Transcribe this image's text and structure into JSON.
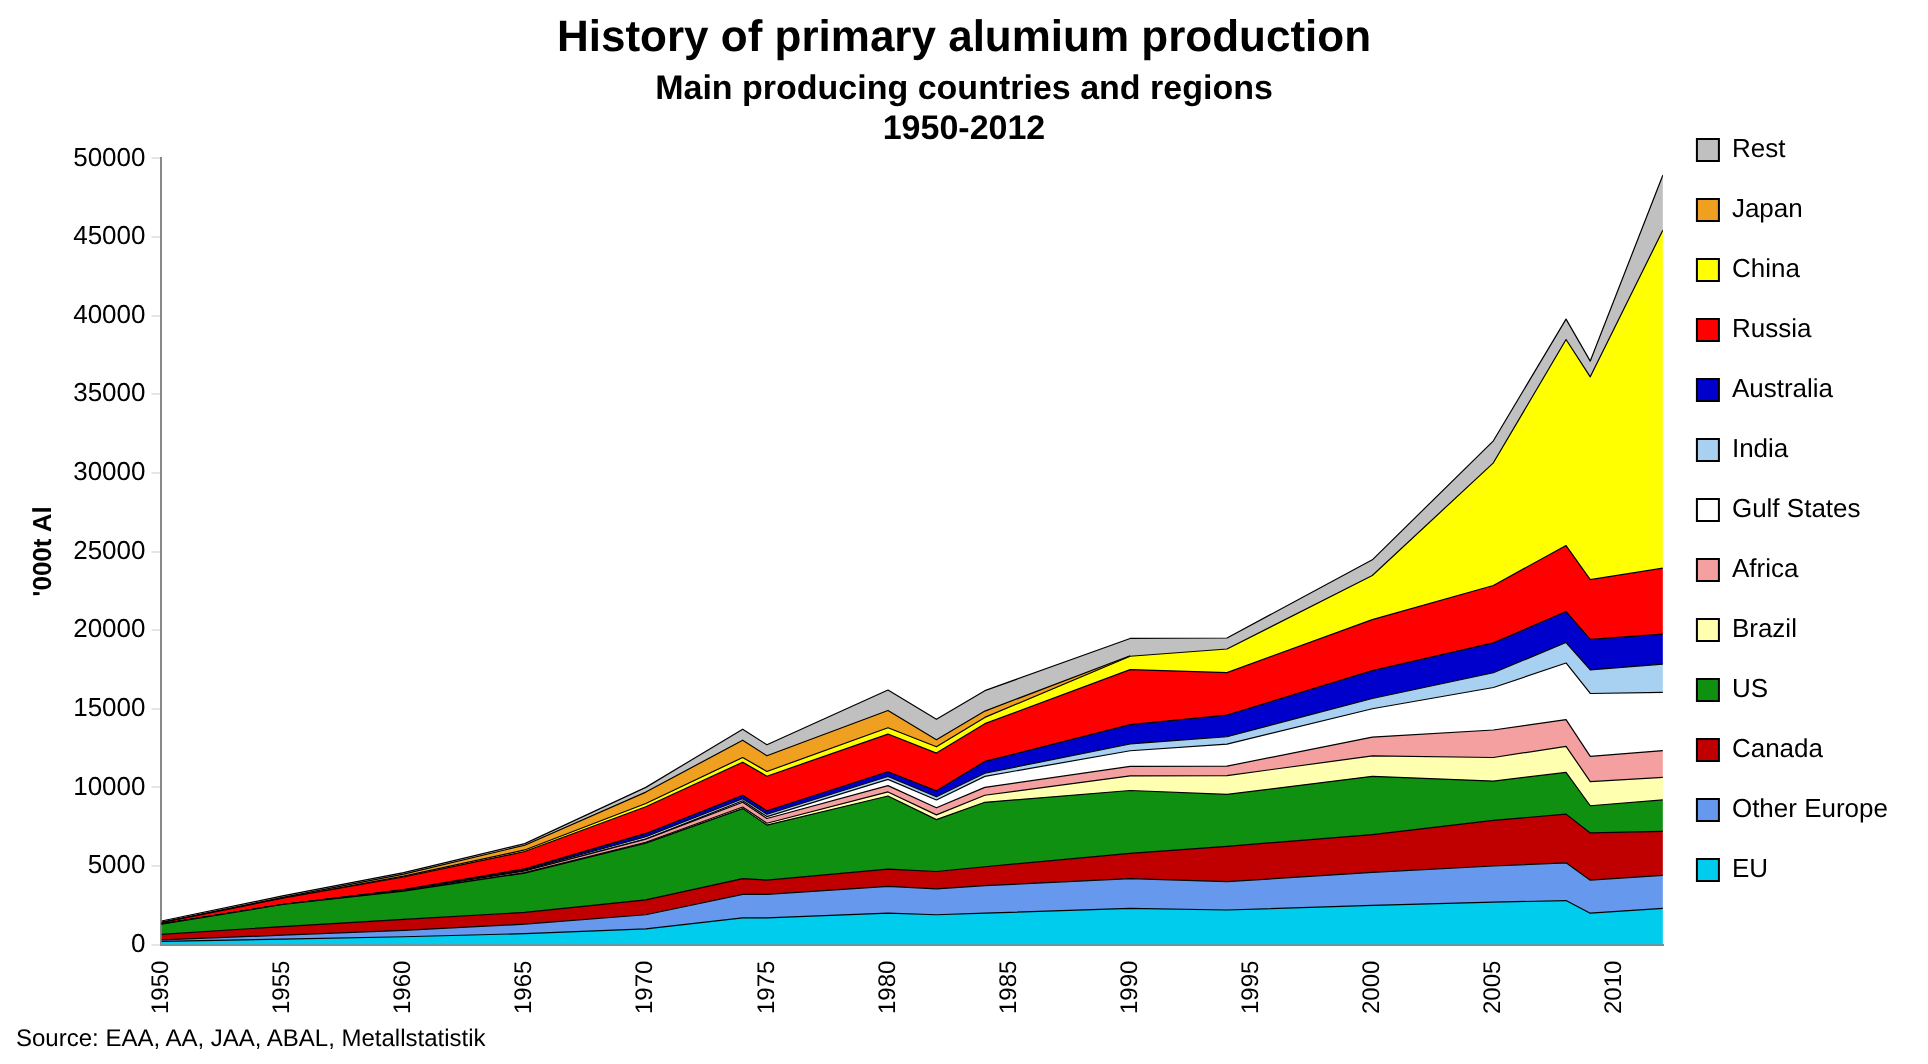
{
  "chart_data": {
    "type": "area",
    "stacked": true,
    "title": "History of primary alumium production",
    "subtitle": "Main producing countries and regions\n1950-2012",
    "ylabel": "'000t Al",
    "annotations": [
      "Source: EAA, AA, JAA, ABAL, Metallstatistik"
    ],
    "x": [
      1950,
      1955,
      1960,
      1965,
      1970,
      1974,
      1975,
      1980,
      1982,
      1984,
      1990,
      1994,
      2000,
      2005,
      2008,
      2009,
      2012
    ],
    "xlim": [
      1950,
      2012
    ],
    "xticks": [
      1950,
      1955,
      1960,
      1965,
      1970,
      1975,
      1980,
      1985,
      1990,
      1995,
      2000,
      2005,
      2010
    ],
    "ylim": [
      0,
      50000
    ],
    "yticks": [
      0,
      5000,
      10000,
      15000,
      20000,
      25000,
      30000,
      35000,
      40000,
      45000,
      50000
    ],
    "grid": false,
    "legend": "right",
    "line_style": "solid",
    "marker": "none",
    "series": [
      {
        "name": "EU",
        "color": "#00ccee",
        "values": [
          200,
          350,
          500,
          700,
          1000,
          1700,
          1700,
          2000,
          1900,
          2000,
          2300,
          2200,
          2500,
          2700,
          2800,
          2000,
          2300
        ]
      },
      {
        "name": "Other Europe",
        "color": "#6699ee",
        "values": [
          100,
          250,
          400,
          600,
          900,
          1500,
          1500,
          1700,
          1650,
          1750,
          1900,
          1800,
          2100,
          2300,
          2400,
          2100,
          2100
        ]
      },
      {
        "name": "Canada",
        "color": "#c00000",
        "values": [
          350,
          550,
          700,
          750,
          950,
          1000,
          900,
          1100,
          1100,
          1200,
          1600,
          2250,
          2400,
          2900,
          3100,
          3000,
          2800
        ]
      },
      {
        "name": "US",
        "color": "#109010",
        "values": [
          650,
          1400,
          1800,
          2500,
          3600,
          4450,
          3500,
          4650,
          3300,
          4100,
          4000,
          3300,
          3700,
          2500,
          2650,
          1730,
          2000
        ]
      },
      {
        "name": "Brazil",
        "color": "#ffffb0",
        "values": [
          0,
          0,
          20,
          30,
          60,
          100,
          120,
          260,
          300,
          450,
          930,
          1200,
          1300,
          1500,
          1660,
          1540,
          1440
        ]
      },
      {
        "name": "Africa",
        "color": "#f4a0a0",
        "values": [
          0,
          0,
          50,
          100,
          200,
          300,
          300,
          400,
          450,
          500,
          600,
          600,
          1200,
          1750,
          1700,
          1600,
          1700
        ]
      },
      {
        "name": "Gulf States",
        "color": "#ffffff",
        "values": [
          0,
          0,
          0,
          0,
          0,
          100,
          120,
          400,
          500,
          700,
          1000,
          1400,
          1800,
          2700,
          3600,
          4000,
          3700
        ]
      },
      {
        "name": "India",
        "color": "#a8d0f0",
        "values": [
          0,
          0,
          20,
          60,
          160,
          130,
          150,
          180,
          200,
          200,
          430,
          470,
          650,
          940,
          1300,
          1500,
          1800
        ]
      },
      {
        "name": "Australia",
        "color": "#0000cc",
        "values": [
          0,
          0,
          10,
          80,
          200,
          220,
          220,
          300,
          380,
          750,
          1230,
          1380,
          1770,
          1900,
          1970,
          1940,
          1900
        ]
      },
      {
        "name": "Russia",
        "color": "#ff0000",
        "values": [
          100,
          400,
          800,
          1100,
          1700,
          2100,
          2200,
          2400,
          2400,
          2400,
          3500,
          2700,
          3250,
          3650,
          4200,
          3800,
          4200
        ]
      },
      {
        "name": "China",
        "color": "#ffff00",
        "values": [
          0,
          0,
          50,
          100,
          200,
          300,
          300,
          400,
          400,
          400,
          850,
          1500,
          2800,
          7800,
          13100,
          12900,
          21500
        ]
      },
      {
        "name": "Japan",
        "color": "#f0a020",
        "values": [
          20,
          50,
          130,
          300,
          730,
          1100,
          1000,
          1100,
          450,
          400,
          30,
          null,
          null,
          null,
          null,
          null,
          null
        ]
      },
      {
        "name": "Rest",
        "color": "#c0c0c0",
        "values": [
          80,
          100,
          100,
          100,
          300,
          700,
          700,
          1300,
          1300,
          1300,
          1100,
          700,
          1000,
          1400,
          1300,
          1000,
          3500
        ]
      }
    ]
  }
}
